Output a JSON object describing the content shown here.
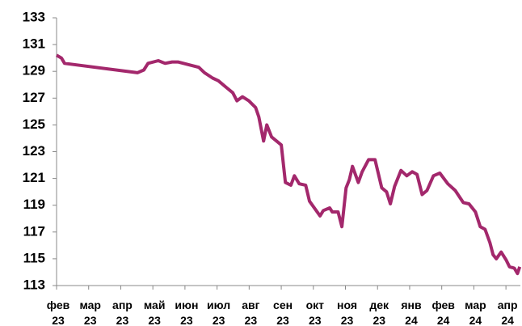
{
  "chart_data": {
    "type": "line",
    "x": [
      0,
      0.15,
      0.25,
      2.52,
      2.72,
      2.85,
      3.17,
      3.38,
      3.6,
      3.78,
      4.11,
      4.43,
      4.61,
      4.86,
      5.04,
      5.29,
      5.49,
      5.62,
      5.79,
      5.99,
      6.2,
      6.3,
      6.45,
      6.55,
      6.7,
      7.0,
      7.13,
      7.3,
      7.41,
      7.56,
      7.76,
      7.88,
      8.21,
      8.31,
      8.51,
      8.59,
      8.77,
      8.89,
      9.02,
      9.12,
      9.22,
      9.4,
      9.52,
      9.72,
      9.92,
      10.13,
      10.28,
      10.4,
      10.53,
      10.73,
      10.91,
      11.08,
      11.23,
      11.39,
      11.54,
      11.74,
      11.94,
      12.19,
      12.42,
      12.67,
      12.85,
      13.05,
      13.2,
      13.35,
      13.5,
      13.6,
      13.7,
      13.85,
      14.01,
      14.11,
      14.26,
      14.36,
      14.43
    ],
    "series": [
      {
        "color": "#a3286c",
        "values": [
          130.2,
          130.0,
          129.6,
          128.9,
          129.1,
          129.6,
          129.8,
          129.6,
          129.7,
          129.7,
          129.5,
          129.3,
          128.9,
          128.5,
          128.3,
          127.8,
          127.4,
          126.8,
          127.1,
          126.8,
          126.3,
          125.6,
          123.8,
          125.0,
          124.1,
          123.5,
          120.7,
          120.5,
          121.2,
          120.6,
          120.5,
          119.3,
          118.2,
          118.6,
          118.8,
          118.5,
          118.5,
          117.4,
          120.3,
          120.9,
          121.9,
          120.7,
          121.5,
          122.4,
          122.4,
          120.3,
          120.0,
          119.1,
          120.4,
          121.6,
          121.2,
          121.5,
          121.3,
          119.8,
          120.1,
          121.2,
          121.4,
          120.6,
          120.1,
          119.2,
          119.1,
          118.5,
          117.4,
          117.2,
          116.2,
          115.3,
          115.0,
          115.5,
          114.9,
          114.4,
          114.3,
          113.9,
          114.4
        ]
      }
    ],
    "xlim": [
      0,
      14.45
    ],
    "xticks": [
      {
        "value": 0,
        "label": "фев 23"
      },
      {
        "value": 1,
        "label": "мар 23"
      },
      {
        "value": 2,
        "label": "апр 23"
      },
      {
        "value": 3,
        "label": "май 23"
      },
      {
        "value": 4,
        "label": "июн 23"
      },
      {
        "value": 5,
        "label": "июл 23"
      },
      {
        "value": 6,
        "label": "авг 23"
      },
      {
        "value": 7,
        "label": "сен 23"
      },
      {
        "value": 8,
        "label": "окт 23"
      },
      {
        "value": 9,
        "label": "ноя 23"
      },
      {
        "value": 10,
        "label": "дек 23"
      },
      {
        "value": 11,
        "label": "янв 24"
      },
      {
        "value": 12,
        "label": "фев 24"
      },
      {
        "value": 13,
        "label": "мар 24"
      },
      {
        "value": 14,
        "label": "апр 24"
      }
    ],
    "ylim": [
      113,
      133
    ],
    "yticks": [
      113,
      115,
      117,
      119,
      121,
      123,
      125,
      127,
      129,
      131,
      133
    ]
  }
}
